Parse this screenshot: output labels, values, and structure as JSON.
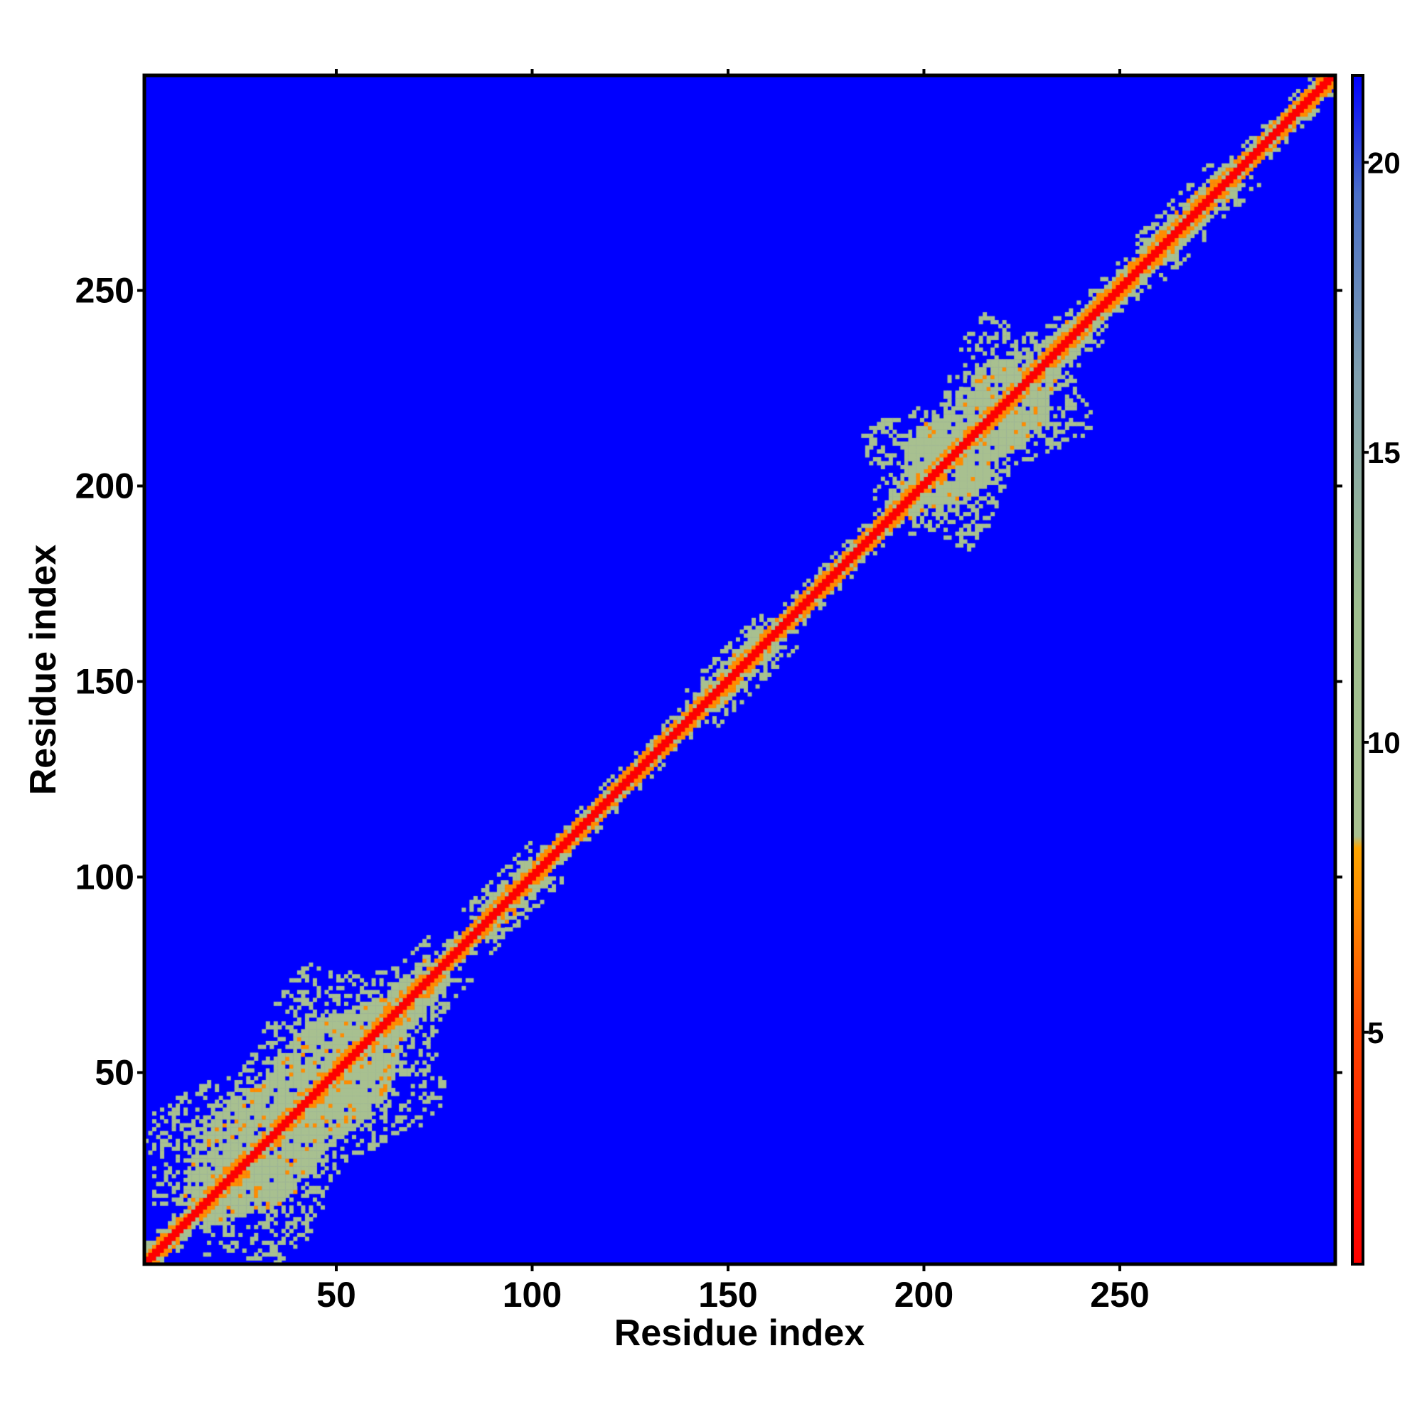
{
  "chart_data": {
    "type": "heatmap",
    "title": "",
    "xlabel": "Residue index",
    "ylabel": "Residue index",
    "xlim": [
      1,
      305
    ],
    "ylim": [
      1,
      305
    ],
    "xticks": [
      50,
      100,
      150,
      200,
      250
    ],
    "yticks": [
      50,
      100,
      150,
      200,
      250
    ],
    "colorbar": {
      "range": [
        1,
        21.5
      ],
      "ticks": [
        5,
        10,
        15,
        20
      ],
      "colors": {
        "near": "#ff0000",
        "mid": "#ff8c00",
        "shell": "#a8c090",
        "far": "#0000ff"
      }
    },
    "diagonal_cluster_regions": [
      {
        "from": 15,
        "to": 72
      },
      {
        "from": 88,
        "to": 98
      },
      {
        "from": 145,
        "to": 157
      },
      {
        "from": 175,
        "to": 195
      },
      {
        "from": 195,
        "to": 235
      },
      {
        "from": 260,
        "to": 275
      }
    ]
  }
}
